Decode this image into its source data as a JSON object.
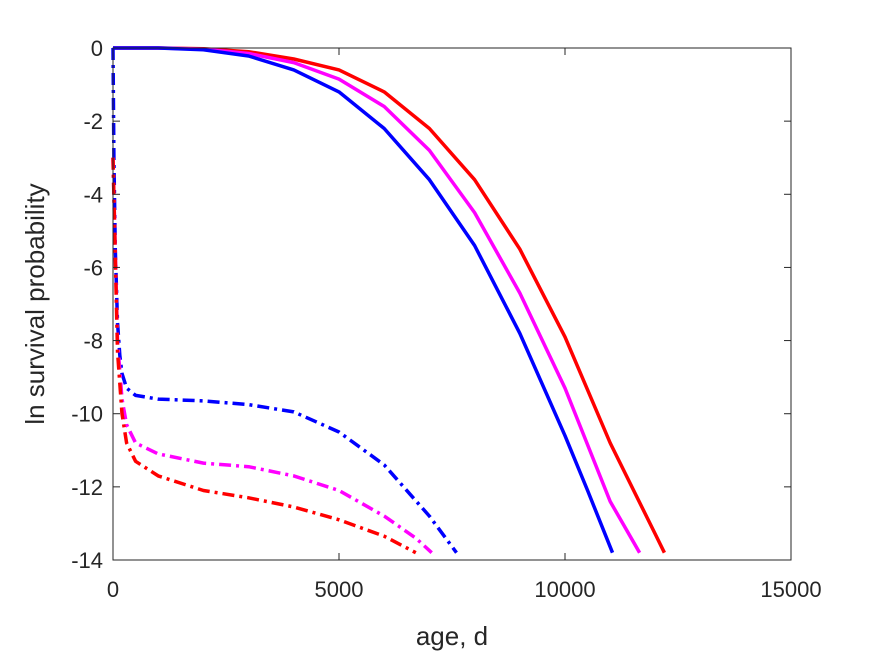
{
  "chart_data": {
    "type": "line",
    "title": "",
    "xlabel": "age, d",
    "ylabel": "ln survival probability",
    "xlim": [
      0,
      15000
    ],
    "ylim": [
      -14,
      0
    ],
    "xticks": [
      0,
      5000,
      10000,
      15000
    ],
    "yticks": [
      0,
      -2,
      -4,
      -6,
      -8,
      -10,
      -12,
      -14
    ],
    "grid": false,
    "legend": "none",
    "series": [
      {
        "color": "#ff0000",
        "style": "solid",
        "x": [
          0,
          1000,
          2000,
          3000,
          4000,
          5000,
          6000,
          7000,
          8000,
          9000,
          10000,
          11000,
          12000,
          12200
        ],
        "y": [
          0,
          0,
          -0.02,
          -0.1,
          -0.3,
          -0.6,
          -1.2,
          -2.2,
          -3.6,
          -5.5,
          -7.9,
          -10.8,
          -13.3,
          -13.8
        ]
      },
      {
        "color": "#ff00ff",
        "style": "solid",
        "x": [
          0,
          1000,
          2000,
          3000,
          4000,
          5000,
          6000,
          7000,
          8000,
          9000,
          10000,
          11000,
          11650
        ],
        "y": [
          0,
          0,
          -0.03,
          -0.15,
          -0.4,
          -0.85,
          -1.6,
          -2.8,
          -4.5,
          -6.7,
          -9.3,
          -12.4,
          -13.8
        ]
      },
      {
        "color": "#0000ff",
        "style": "solid",
        "x": [
          0,
          1000,
          2000,
          3000,
          4000,
          5000,
          6000,
          7000,
          8000,
          9000,
          10000,
          10500,
          11050
        ],
        "y": [
          0,
          0,
          -0.05,
          -0.22,
          -0.6,
          -1.2,
          -2.2,
          -3.6,
          -5.4,
          -7.8,
          -10.6,
          -12.1,
          -13.8
        ]
      },
      {
        "color": "#0000ff",
        "style": "dashdot",
        "x": [
          0,
          20,
          50,
          100,
          150,
          200,
          300,
          500,
          1000,
          2000,
          3000,
          4000,
          5000,
          6000,
          7000,
          7600
        ],
        "y": [
          0,
          -3.0,
          -5.5,
          -7.5,
          -8.4,
          -8.9,
          -9.3,
          -9.5,
          -9.6,
          -9.65,
          -9.75,
          -9.95,
          -10.5,
          -11.4,
          -12.8,
          -13.8
        ]
      },
      {
        "color": "#ff00ff",
        "style": "dashdot",
        "x": [
          0,
          100,
          200,
          300,
          500,
          1000,
          2000,
          3000,
          4000,
          5000,
          6000,
          6700,
          7050
        ],
        "y": [
          -3.0,
          -8.0,
          -9.6,
          -10.3,
          -10.8,
          -11.1,
          -11.35,
          -11.45,
          -11.7,
          -12.1,
          -12.8,
          -13.4,
          -13.8
        ]
      },
      {
        "color": "#ff0000",
        "style": "dashdot",
        "x": [
          0,
          100,
          200,
          300,
          500,
          1000,
          2000,
          3000,
          4000,
          5000,
          6000,
          6700
        ],
        "y": [
          -3.0,
          -8.3,
          -10.0,
          -10.8,
          -11.3,
          -11.7,
          -12.1,
          -12.3,
          -12.55,
          -12.9,
          -13.35,
          -13.8
        ]
      }
    ]
  }
}
